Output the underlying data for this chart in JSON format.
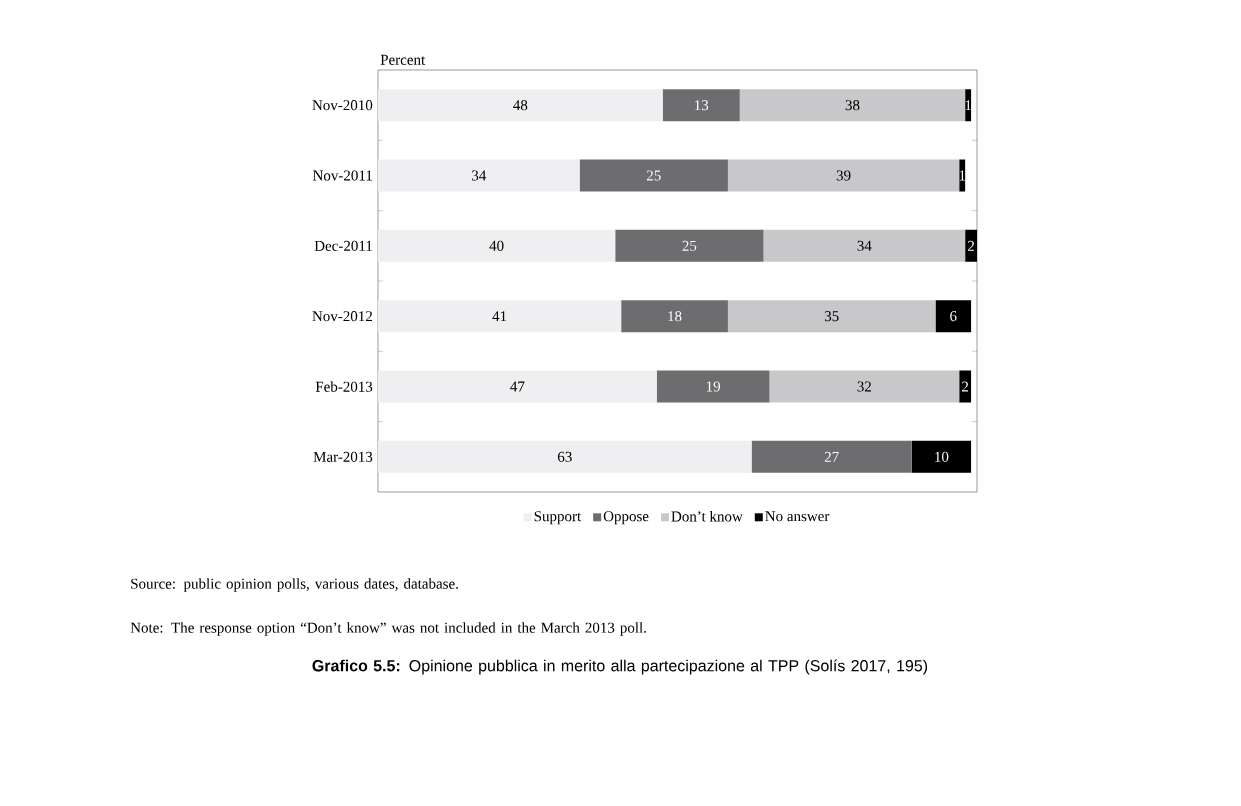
{
  "chart_data": {
    "type": "bar",
    "orientation": "horizontal",
    "stacked": true,
    "xlabel": "Percent",
    "categories": [
      "Nov-2010",
      "Nov-2011",
      "Dec-2011",
      "Nov-2012",
      "Feb-2013",
      "Mar-2013"
    ],
    "series": [
      {
        "name": "Support",
        "color": "#efeff1",
        "values": [
          48,
          34,
          40,
          41,
          47,
          63
        ]
      },
      {
        "name": "Oppose",
        "color": "#6d6d6f",
        "values": [
          13,
          25,
          25,
          18,
          19,
          27
        ]
      },
      {
        "name": "Don’t know",
        "color": "#c8c8ca",
        "values": [
          38,
          39,
          34,
          35,
          32,
          null
        ]
      },
      {
        "name": "No answer",
        "color": "#000000",
        "values": [
          1,
          1,
          2,
          6,
          2,
          10
        ]
      }
    ],
    "data_labels": true,
    "legend": "bottom",
    "grid": false,
    "annotations": [
      "Source: public opinion polls, various dates, database.",
      "Note: The response option “Don’t know” was not included in the March 2013 poll.",
      "**Grafico 5.5:** Opinione pubblica in merito alla partecipazione al TPP (Solís 2017, 195)"
    ]
  }
}
